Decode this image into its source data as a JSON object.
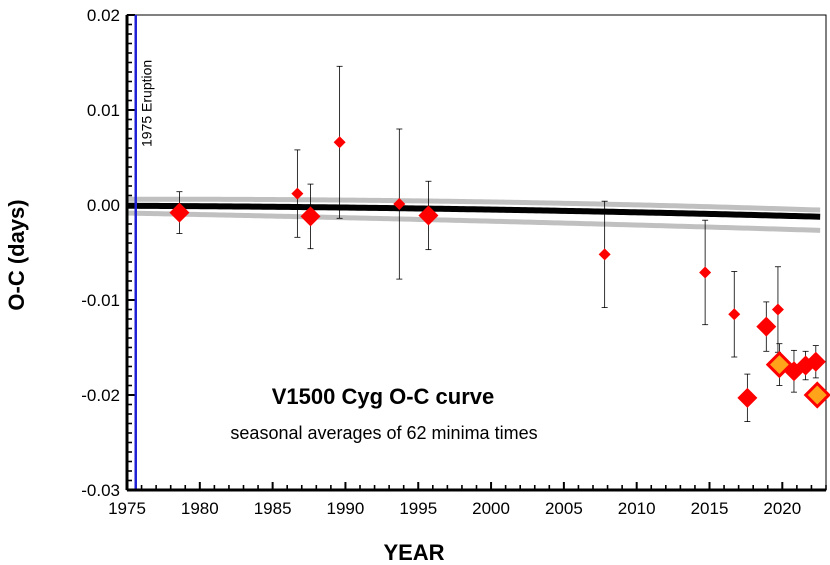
{
  "chart_data": {
    "type": "scatter",
    "title": "V1500 Cyg O-C curve",
    "subtitle": "seasonal averages of 62 minima times",
    "xlabel": "YEAR",
    "ylabel": "O-C (days)",
    "xlim": [
      1975,
      2023
    ],
    "ylim": [
      -0.03,
      0.02
    ],
    "x_ticks": [
      1975,
      1980,
      1985,
      1990,
      1995,
      2000,
      2005,
      2010,
      2015,
      2020
    ],
    "x_tick_labels": [
      "1975",
      "1980",
      "1985",
      "1990",
      "1995",
      "2000",
      "2005",
      "2010",
      "2015",
      "2020"
    ],
    "y_ticks": [
      0.02,
      0.01,
      0.0,
      -0.01,
      -0.02,
      -0.03
    ],
    "y_tick_labels": [
      "0.02",
      "0.01",
      "0.00",
      "-0.01",
      "-0.02",
      "-0.03"
    ],
    "vertical_line": {
      "x": 1975.6,
      "label": "1975 Eruption",
      "color": "#1f1fd6"
    },
    "colors": {
      "point": "#ff0000",
      "highlight_fill": "#ffa31a",
      "highlight_edge": "#ff0000",
      "fit": "#000000",
      "bounds": "#c0c0c0",
      "errorbar": "#000000"
    },
    "fit_curve": {
      "name": "fit",
      "coeffs": [
        -0.00016,
        -1.28e-05,
        -3.62e-07
      ]
    },
    "bound_curves": [
      {
        "name": "upper bound",
        "coeffs": [
          0.00059,
          -6.55e-06,
          -5.5e-07
        ]
      },
      {
        "name": "lower bound",
        "coeffs": [
          -0.0011,
          -3.26e-05,
          -1.77e-07
        ]
      }
    ],
    "series": [
      {
        "name": "seasonal averages",
        "points": [
          {
            "x": 1978.6,
            "y": -0.0008,
            "err": 0.0022,
            "size": "large"
          },
          {
            "x": 1986.7,
            "y": 0.0012,
            "err": 0.0046,
            "size": "small"
          },
          {
            "x": 1987.6,
            "y": -0.0012,
            "err": 0.0034,
            "size": "large"
          },
          {
            "x": 1989.6,
            "y": 0.0066,
            "err": 0.008,
            "size": "small"
          },
          {
            "x": 1993.7,
            "y": 0.0001,
            "err": 0.0079,
            "size": "small"
          },
          {
            "x": 1995.7,
            "y": -0.0011,
            "err": 0.0036,
            "size": "large"
          },
          {
            "x": 2007.8,
            "y": -0.0052,
            "err": 0.0056,
            "size": "small"
          },
          {
            "x": 2014.7,
            "y": -0.0071,
            "err": 0.0055,
            "size": "small"
          },
          {
            "x": 2016.7,
            "y": -0.0115,
            "err": 0.0045,
            "size": "small"
          },
          {
            "x": 2017.6,
            "y": -0.0203,
            "err": 0.0025,
            "size": "large"
          },
          {
            "x": 2018.9,
            "y": -0.0128,
            "err": 0.0026,
            "size": "large"
          },
          {
            "x": 2019.7,
            "y": -0.011,
            "err": 0.0045,
            "size": "small"
          },
          {
            "x": 2019.8,
            "y": -0.0168,
            "err": 0.0022,
            "size": "highlight"
          },
          {
            "x": 2020.8,
            "y": -0.0175,
            "err": 0.0022,
            "size": "large"
          },
          {
            "x": 2021.6,
            "y": -0.0169,
            "err": 0.0015,
            "size": "large"
          },
          {
            "x": 2022.3,
            "y": -0.0165,
            "err": 0.0017,
            "size": "large"
          },
          {
            "x": 2022.4,
            "y": -0.02,
            "err": 0.0009,
            "size": "highlight"
          }
        ]
      }
    ]
  }
}
